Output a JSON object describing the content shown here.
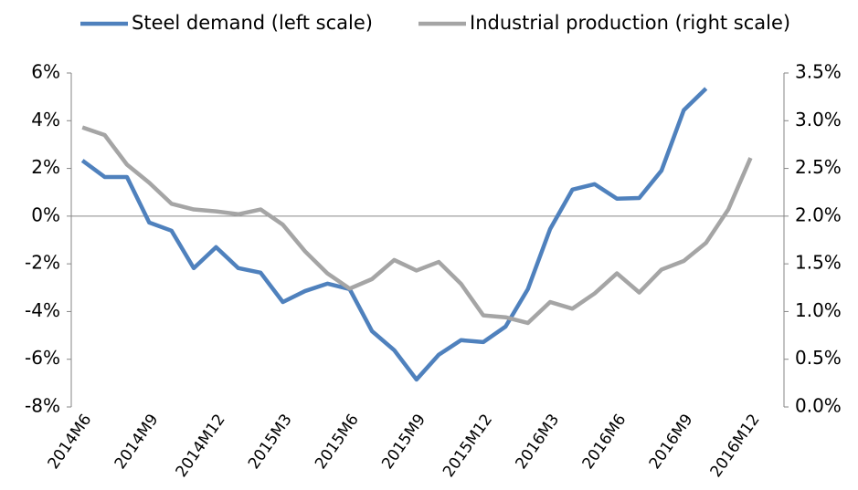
{
  "chart_data": {
    "type": "line",
    "categories": [
      "2014M6",
      null,
      null,
      "2014M9",
      null,
      null,
      "2014M12",
      null,
      null,
      "2015M3",
      null,
      null,
      "2015M6",
      null,
      null,
      "2015M9",
      null,
      null,
      "2015M12",
      null,
      null,
      "2016M3",
      null,
      null,
      "2016M6",
      null,
      null,
      "2016M9",
      null,
      null,
      "2016M12",
      null
    ],
    "series": [
      {
        "name": "Steel demand (left scale)",
        "color": "#4f81bd",
        "axis": "y",
        "values": [
          2.33,
          1.64,
          1.64,
          -0.27,
          -0.61,
          -2.18,
          -1.3,
          -2.18,
          -2.37,
          -3.6,
          -3.14,
          -2.83,
          -3.06,
          -4.82,
          -5.62,
          -6.85,
          -5.81,
          -5.2,
          -5.28,
          -4.63,
          -3.06,
          -0.54,
          1.11,
          1.34,
          0.73,
          0.76,
          1.91,
          4.44,
          5.35,
          null,
          null,
          null
        ]
      },
      {
        "name": "Industrial production (right scale)",
        "color": "#a5a5a5",
        "axis": "y2",
        "values": [
          2.93,
          2.85,
          2.54,
          2.35,
          2.13,
          2.07,
          2.05,
          2.02,
          2.07,
          1.91,
          1.63,
          1.4,
          1.24,
          1.34,
          1.54,
          1.43,
          1.52,
          1.29,
          0.96,
          0.94,
          0.88,
          1.1,
          1.03,
          1.19,
          1.4,
          1.2,
          1.44,
          1.53,
          1.72,
          2.07,
          2.61,
          null
        ]
      }
    ],
    "ylim": [
      -8,
      6
    ],
    "yticks": [
      {
        "value": -8,
        "label": "-8%"
      },
      {
        "value": -6,
        "label": "-6%"
      },
      {
        "value": -4,
        "label": "-4%"
      },
      {
        "value": -2,
        "label": "-2%"
      },
      {
        "value": 0,
        "label": "0%"
      },
      {
        "value": 2,
        "label": "2%"
      },
      {
        "value": 4,
        "label": "4%"
      },
      {
        "value": 6,
        "label": "6%"
      }
    ],
    "y2lim": [
      0,
      3.5
    ],
    "y2ticks": [
      {
        "value": 0,
        "label": "0.0%"
      },
      {
        "value": 0.5,
        "label": "0.5%"
      },
      {
        "value": 1,
        "label": "1.0%"
      },
      {
        "value": 1.5,
        "label": "1.5%"
      },
      {
        "value": 2,
        "label": "2.0%"
      },
      {
        "value": 2.5,
        "label": "2.5%"
      },
      {
        "value": 3,
        "label": "3.0%"
      },
      {
        "value": 3.5,
        "label": "3.5%"
      }
    ],
    "legend": "top"
  }
}
